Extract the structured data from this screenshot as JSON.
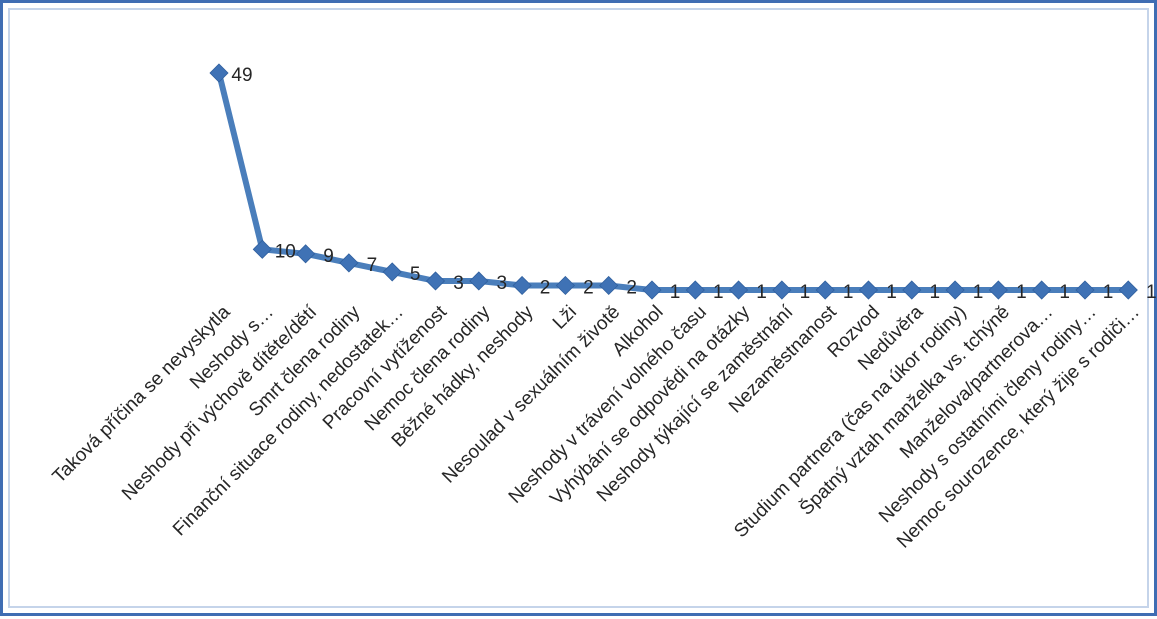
{
  "chart_data": {
    "type": "line",
    "title": "",
    "xlabel": "",
    "ylabel": "",
    "ylim": [
      0,
      49
    ],
    "grid": false,
    "legend": "none",
    "colors": {
      "line": "#4a7ebb",
      "marker": "#3f72b5",
      "label": "#262626"
    },
    "categories": [
      "Taková příčina se nevyskytla",
      "Neshody s…",
      "Neshody při výchově dítěte/dětí",
      "Smrt člena rodiny",
      "Finanční situace rodiny, nedostatek…",
      "Pracovní vytíženost",
      "Nemoc člena rodiny",
      "Běžné hádky, neshody",
      "Lži",
      "Nesoulad v sexuálním životě",
      "Alkohol",
      "Neshody v trávení volného času",
      "Vyhýbání se odpovědi na otázky",
      "Neshody týkající se zaměstnání",
      "Nezaměstnanost",
      "Rozvod",
      "Nedůvěra",
      "Studium partnera (čas na úkor rodiny)",
      "Špatný vztah manželka vs. tchýně",
      "Manželova/partnerova…",
      "Neshody s ostatními členy rodiny…",
      "Nemoc sourozence, který žije s rodiči…"
    ],
    "values": [
      49,
      10,
      9,
      7,
      5,
      3,
      3,
      2,
      2,
      2,
      1,
      1,
      1,
      1,
      1,
      1,
      1,
      1,
      1,
      1,
      1,
      1
    ]
  }
}
